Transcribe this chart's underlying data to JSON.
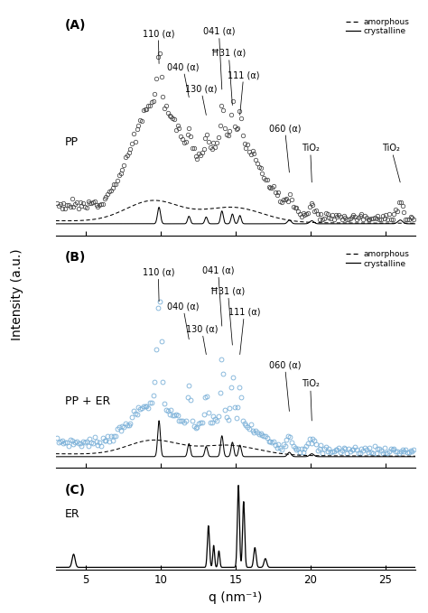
{
  "xlim": [
    3,
    27
  ],
  "xlabel": "q (nm⁻¹)",
  "ylabel": "Intensity (a.u.)",
  "background_color": "#ffffff",
  "panel_A_label": "(A)",
  "panel_A_sample": "PP",
  "panel_A_scatter_color": "#444444",
  "panel_B_label": "(B)",
  "panel_B_sample": "PP + ER",
  "panel_B_scatter_color": "#7ab0d8",
  "panel_C_label": "(C)",
  "panel_C_sample": "ER",
  "panel_C_line_color": "#000000",
  "legend_dashed": "amorphous",
  "legend_solid": "crystalline",
  "annotation_fontsize": 7.0,
  "tick_fontsize": 8.5
}
